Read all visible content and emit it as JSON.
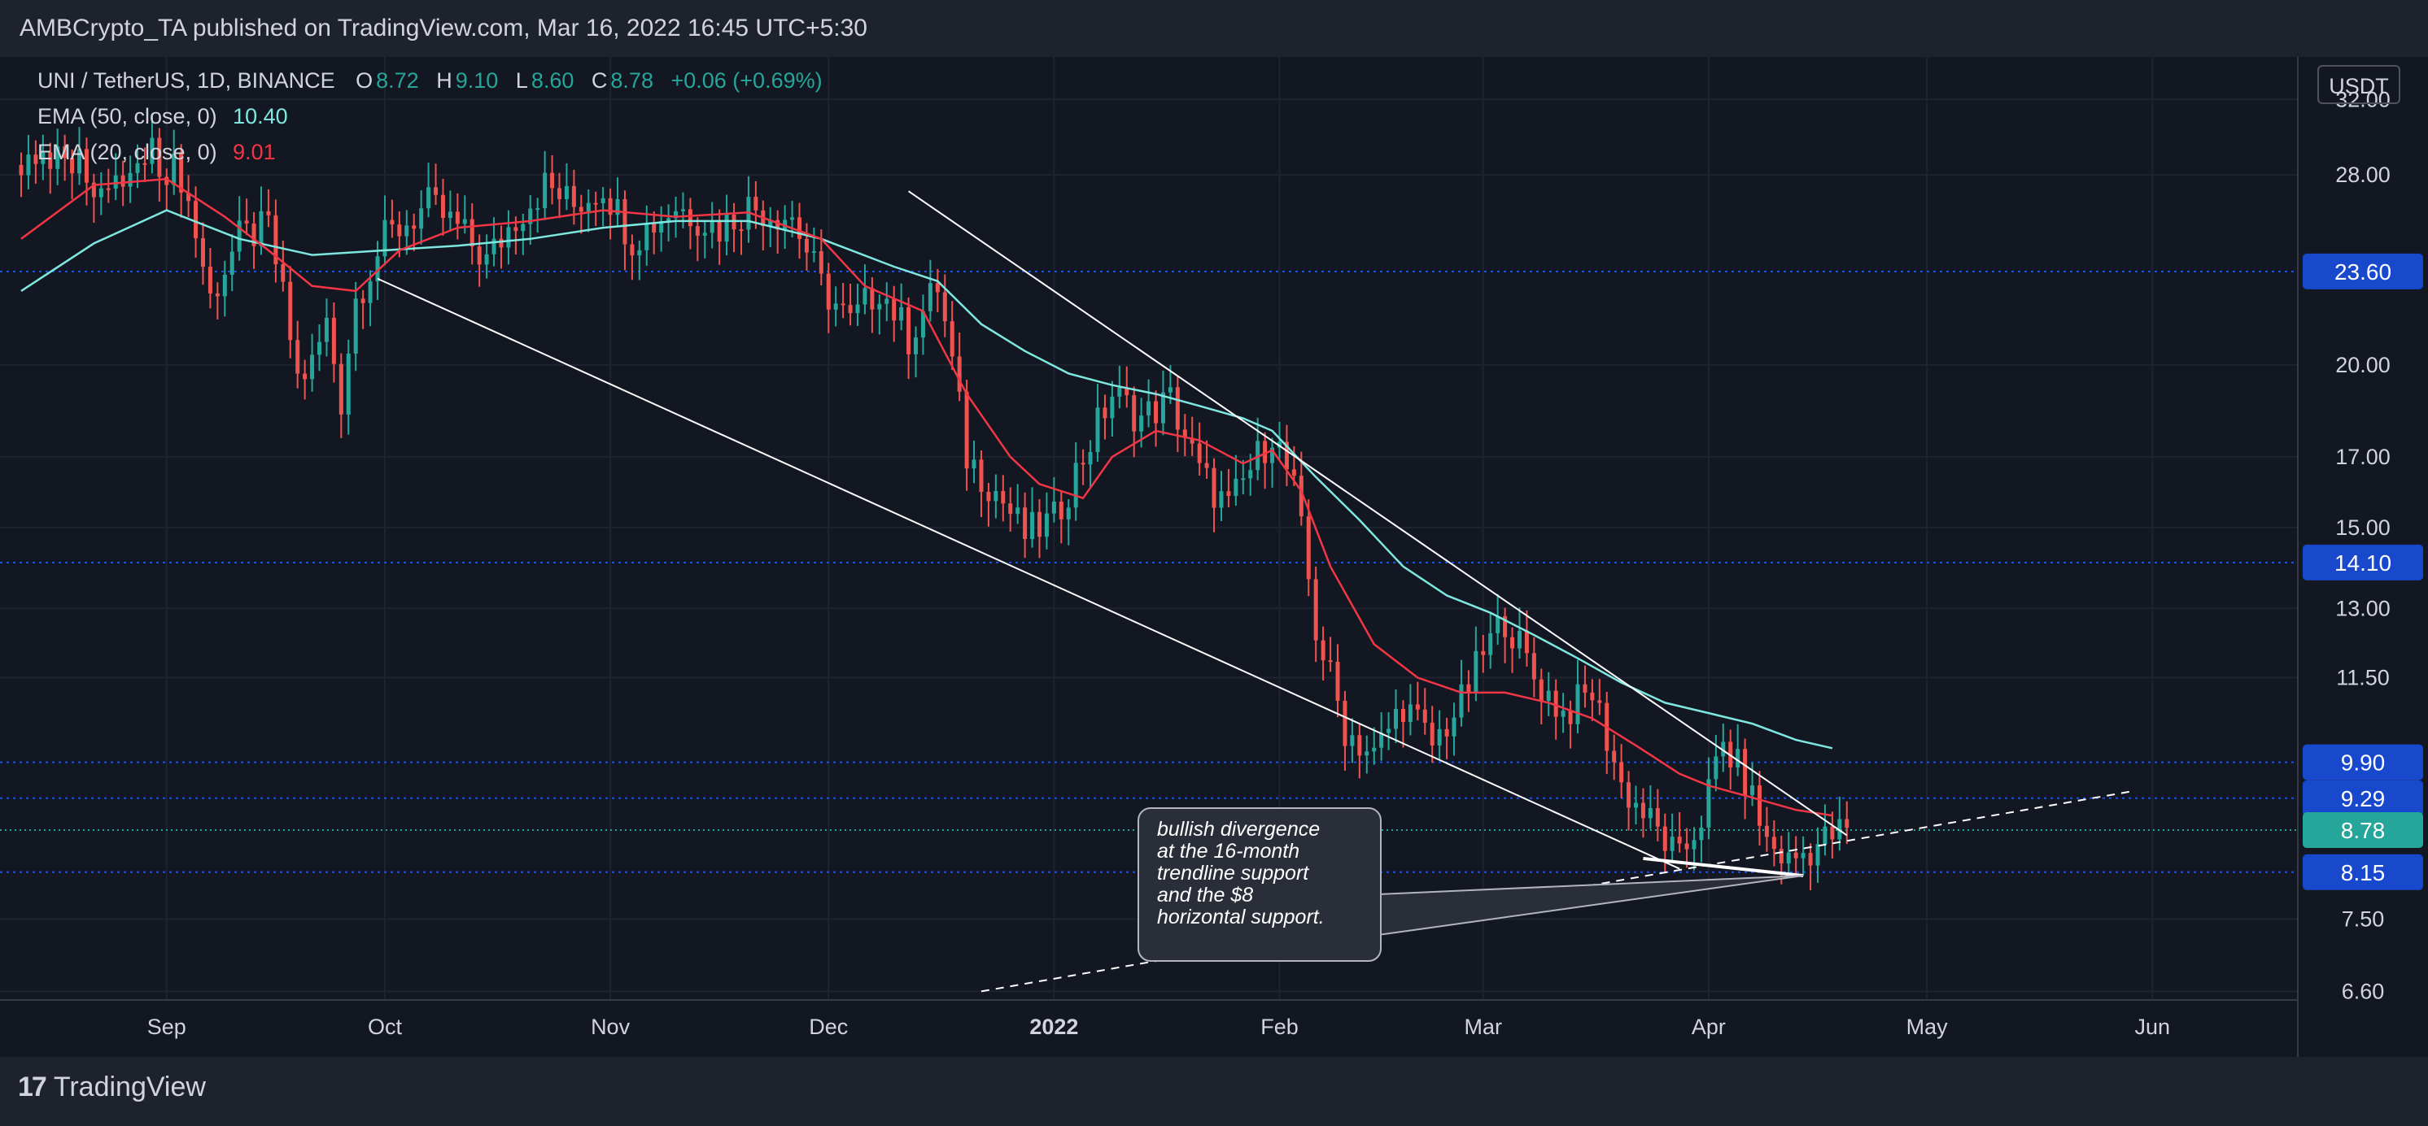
{
  "header": {
    "published": "AMBCrypto_TA published on TradingView.com, Mar 16, 2022 16:45 UTC+5:30"
  },
  "legend": {
    "symbol": "UNI / TetherUS, 1D, BINANCE",
    "o_label": "O",
    "o": "8.72",
    "h_label": "H",
    "h": "9.10",
    "l_label": "L",
    "l": "8.60",
    "c_label": "C",
    "c": "8.78",
    "change": "+0.06 (+0.69%)",
    "ema50_label": "EMA (50, close, 0)",
    "ema50_value": "10.40",
    "ema20_label": "EMA (20, close, 0)",
    "ema20_value": "9.01"
  },
  "currency_label": "USDT",
  "callout_lines": [
    "bullish divergence",
    "at the 16-month",
    "trendline support",
    "and the $8",
    "horizontal support."
  ],
  "footer": {
    "logo_mark": "17",
    "logo_text": "TradingView"
  },
  "chart_data": {
    "type": "candlestick",
    "title": "UNI / TetherUS, 1D, BINANCE",
    "yscale": "log",
    "ylim": [
      6.5,
      34.5
    ],
    "y_ticks": [
      {
        "value": 32.0,
        "label": "32.00"
      },
      {
        "value": 28.0,
        "label": "28.00"
      },
      {
        "value": 20.0,
        "label": "20.00"
      },
      {
        "value": 17.0,
        "label": "17.00"
      },
      {
        "value": 15.0,
        "label": "15.00"
      },
      {
        "value": 13.0,
        "label": "13.00"
      },
      {
        "value": 11.5,
        "label": "11.50"
      },
      {
        "value": 7.5,
        "label": "7.50"
      },
      {
        "value": 6.6,
        "label": "6.60"
      }
    ],
    "x_ticks": [
      {
        "day": 0,
        "label": "Sep"
      },
      {
        "day": 30,
        "label": "Oct"
      },
      {
        "day": 61,
        "label": "Nov"
      },
      {
        "day": 91,
        "label": "Dec"
      },
      {
        "day": 122,
        "label": "2022"
      },
      {
        "day": 153,
        "label": "Feb"
      },
      {
        "day": 181,
        "label": "Mar"
      },
      {
        "day": 212,
        "label": "Apr"
      },
      {
        "day": 242,
        "label": "May"
      },
      {
        "day": 273,
        "label": "Jun"
      }
    ],
    "x_start_day": -20,
    "x_end_day": 293,
    "start_date": "2021-09-01",
    "horizontal_levels": [
      {
        "value": 23.6,
        "label": "23.60",
        "color": "#1848cc"
      },
      {
        "value": 14.1,
        "label": "14.10",
        "color": "#1848cc"
      },
      {
        "value": 9.9,
        "label": "9.90",
        "color": "#1848cc"
      },
      {
        "value": 9.29,
        "label": "9.29",
        "color": "#1848cc"
      },
      {
        "value": 8.15,
        "label": "8.15",
        "color": "#1848cc"
      }
    ],
    "last_price": {
      "value": 8.78,
      "label": "8.78",
      "color": "#26a69a"
    },
    "anchors": [
      [
        -20,
        28.5
      ],
      [
        -14,
        29.5
      ],
      [
        -8,
        27.0
      ],
      [
        -2,
        29.0
      ],
      [
        2,
        28.0
      ],
      [
        6,
        22.5
      ],
      [
        10,
        25.0
      ],
      [
        14,
        25.5
      ],
      [
        18,
        19.5
      ],
      [
        20,
        20.0
      ],
      [
        22,
        21.5
      ],
      [
        24,
        18.8
      ],
      [
        26,
        22.5
      ],
      [
        30,
        25.0
      ],
      [
        36,
        26.5
      ],
      [
        40,
        25.5
      ],
      [
        44,
        24.0
      ],
      [
        48,
        26.0
      ],
      [
        52,
        27.5
      ],
      [
        56,
        26.5
      ],
      [
        60,
        27.5
      ],
      [
        64,
        25.0
      ],
      [
        70,
        26.5
      ],
      [
        76,
        25.5
      ],
      [
        80,
        26.5
      ],
      [
        86,
        26.0
      ],
      [
        90,
        23.0
      ],
      [
        94,
        21.5
      ],
      [
        98,
        23.0
      ],
      [
        102,
        21.0
      ],
      [
        106,
        23.0
      ],
      [
        108,
        20.0
      ],
      [
        110,
        17.0
      ],
      [
        114,
        16.0
      ],
      [
        118,
        14.8
      ],
      [
        122,
        15.2
      ],
      [
        126,
        17.0
      ],
      [
        130,
        19.0
      ],
      [
        134,
        18.2
      ],
      [
        138,
        18.8
      ],
      [
        142,
        16.5
      ],
      [
        146,
        15.5
      ],
      [
        150,
        17.0
      ],
      [
        152,
        17.8
      ],
      [
        155,
        16.0
      ],
      [
        158,
        12.5
      ],
      [
        162,
        10.5
      ],
      [
        166,
        10.0
      ],
      [
        170,
        11.0
      ],
      [
        174,
        10.2
      ],
      [
        178,
        11.0
      ],
      [
        181,
        12.0
      ],
      [
        184,
        12.8
      ],
      [
        188,
        11.5
      ],
      [
        192,
        10.8
      ],
      [
        196,
        11.2
      ],
      [
        200,
        9.5
      ],
      [
        204,
        8.9
      ],
      [
        208,
        8.3
      ],
      [
        211,
        9.0
      ],
      [
        214,
        10.2
      ],
      [
        217,
        9.6
      ],
      [
        220,
        8.6
      ],
      [
        223,
        8.3
      ],
      [
        226,
        8.5
      ],
      [
        229,
        8.7
      ],
      [
        231,
        8.78
      ]
    ],
    "ema50_path": [
      [
        -20,
        22.8
      ],
      [
        -10,
        24.8
      ],
      [
        0,
        26.3
      ],
      [
        10,
        25.0
      ],
      [
        20,
        24.3
      ],
      [
        30,
        24.5
      ],
      [
        40,
        24.7
      ],
      [
        50,
        25.0
      ],
      [
        60,
        25.5
      ],
      [
        70,
        25.8
      ],
      [
        80,
        25.8
      ],
      [
        90,
        25.0
      ],
      [
        100,
        23.8
      ],
      [
        106,
        23.2
      ],
      [
        112,
        21.5
      ],
      [
        118,
        20.5
      ],
      [
        124,
        19.7
      ],
      [
        130,
        19.3
      ],
      [
        136,
        19.0
      ],
      [
        142,
        18.6
      ],
      [
        148,
        18.2
      ],
      [
        152,
        17.8
      ],
      [
        158,
        16.4
      ],
      [
        164,
        15.2
      ],
      [
        170,
        14.0
      ],
      [
        176,
        13.3
      ],
      [
        182,
        12.9
      ],
      [
        188,
        12.4
      ],
      [
        194,
        11.9
      ],
      [
        200,
        11.4
      ],
      [
        206,
        11.0
      ],
      [
        212,
        10.8
      ],
      [
        218,
        10.6
      ],
      [
        224,
        10.3
      ],
      [
        229,
        10.15
      ]
    ],
    "ema20_path": [
      [
        -20,
        25.0
      ],
      [
        -10,
        27.5
      ],
      [
        0,
        27.8
      ],
      [
        8,
        26.0
      ],
      [
        14,
        24.5
      ],
      [
        20,
        23.0
      ],
      [
        26,
        22.8
      ],
      [
        32,
        24.5
      ],
      [
        40,
        25.5
      ],
      [
        50,
        25.8
      ],
      [
        60,
        26.3
      ],
      [
        70,
        26.0
      ],
      [
        80,
        26.2
      ],
      [
        90,
        25.0
      ],
      [
        96,
        23.0
      ],
      [
        100,
        22.5
      ],
      [
        104,
        22.0
      ],
      [
        110,
        19.0
      ],
      [
        116,
        17.0
      ],
      [
        120,
        16.2
      ],
      [
        126,
        15.8
      ],
      [
        130,
        17.0
      ],
      [
        136,
        17.8
      ],
      [
        142,
        17.5
      ],
      [
        148,
        16.8
      ],
      [
        152,
        17.2
      ],
      [
        156,
        16.0
      ],
      [
        160,
        14.0
      ],
      [
        166,
        12.2
      ],
      [
        172,
        11.5
      ],
      [
        178,
        11.2
      ],
      [
        184,
        11.2
      ],
      [
        190,
        11.0
      ],
      [
        196,
        10.7
      ],
      [
        202,
        10.2
      ],
      [
        208,
        9.7
      ],
      [
        212,
        9.5
      ],
      [
        218,
        9.3
      ],
      [
        224,
        9.1
      ],
      [
        229,
        9.01
      ]
    ],
    "drawings": [
      {
        "name": "descending-trendline-lower",
        "from": [
          29,
          23.3
        ],
        "to": [
          208,
          8.2
        ],
        "dashed": false
      },
      {
        "name": "descending-trendline-upper",
        "from": [
          102,
          27.2
        ],
        "to": [
          231,
          8.7
        ],
        "dashed": false
      },
      {
        "name": "ascending-support-line",
        "from": [
          112,
          6.6
        ],
        "to": [
          270,
          9.4
        ],
        "dashed": true
      },
      {
        "name": "divergence-line",
        "from": [
          203,
          8.35
        ],
        "to": [
          225,
          8.1
        ],
        "dashed": false
      }
    ]
  }
}
